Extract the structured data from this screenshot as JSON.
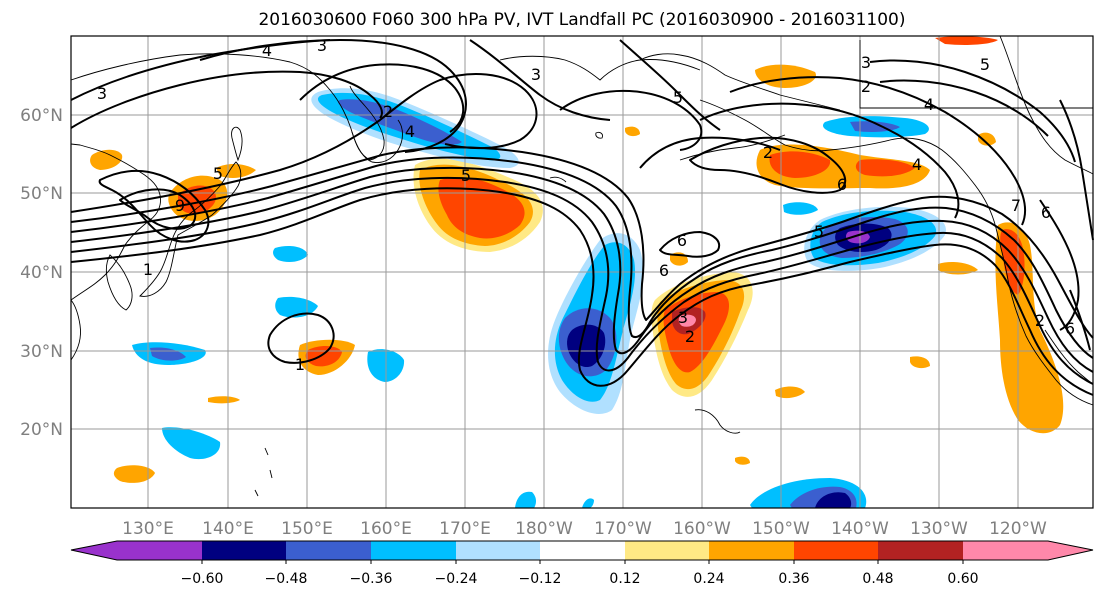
{
  "title": "2016030600 F060 300 hPa PV, IVT Landfall PC (2016030900 - 2016031100)",
  "map": {
    "lon_ticks": [
      "130°E",
      "140°E",
      "150°E",
      "160°E",
      "170°E",
      "180°W",
      "170°W",
      "160°W",
      "150°W",
      "140°W",
      "130°W",
      "120°W"
    ],
    "lat_ticks": [
      "60°N",
      "50°N",
      "40°N",
      "30°N",
      "20°N"
    ],
    "contour_labels": [
      "4",
      "3",
      "3",
      "3",
      "2",
      "5",
      "9",
      "5",
      "1",
      "1",
      "5",
      "6",
      "6",
      "3",
      "2",
      "6",
      "5",
      "3",
      "2",
      "4",
      "5",
      "4",
      "6",
      "6",
      "7",
      "4",
      "2",
      "2"
    ]
  },
  "colorbar": {
    "tick_labels": [
      "−0.60",
      "−0.48",
      "−0.36",
      "−0.24",
      "−0.12",
      "0.12",
      "0.24",
      "0.36",
      "0.48",
      "0.60"
    ],
    "colors": {
      "lt_-0.60": "#9932cc",
      "-0.60_-0.48": "#000080",
      "-0.48_-0.36": "#3b5fcf",
      "-0.36_-0.24": "#00bfff",
      "-0.24_-0.12": "#b0e0ff",
      "-0.12_0.12": "#ffffff",
      "0.12_0.24": "#ffe985",
      "0.24_0.36": "#ffa500",
      "0.36_0.48": "#ff4500",
      "0.48_0.60": "#b22222",
      "gt_0.60": "#ff88aa"
    }
  }
}
